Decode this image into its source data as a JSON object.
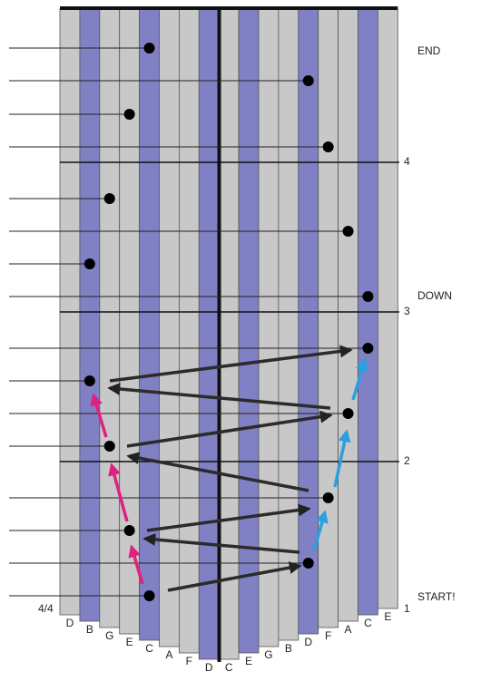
{
  "labels": {
    "end": "END",
    "down": "DOWN",
    "start": "START!",
    "time_signature": "4/4"
  },
  "measures": [
    "1",
    "2",
    "3",
    "4"
  ],
  "keys": [
    "D",
    "B",
    "G",
    "E",
    "C",
    "A",
    "F",
    "D",
    "C",
    "E",
    "G",
    "B",
    "D",
    "F",
    "A",
    "C",
    "E"
  ]
}
